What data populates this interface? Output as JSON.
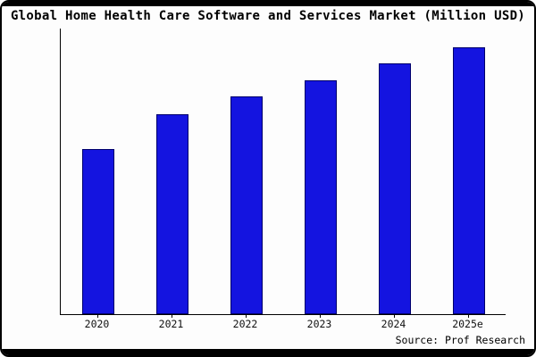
{
  "title": "Global Home Health Care Software and Services Market (Million USD)",
  "source": "Source: Prof Research",
  "colors": {
    "bar_fill": "#1414e0",
    "bar_edge": "#00006b",
    "frame": "#000000",
    "background": "#fdfdfd"
  },
  "chart_data": {
    "type": "bar",
    "title": "Global Home Health Care Software and Services Market (Million USD)",
    "categories": [
      "2020",
      "2021",
      "2022",
      "2023",
      "2024",
      "2025e"
    ],
    "values": [
      620,
      750,
      815,
      875,
      940,
      1000
    ],
    "xlabel": "",
    "ylabel": "",
    "ylim": [
      0,
      1070
    ],
    "grid": false,
    "legend": null,
    "annotations": [
      "Source: Prof Research"
    ]
  }
}
